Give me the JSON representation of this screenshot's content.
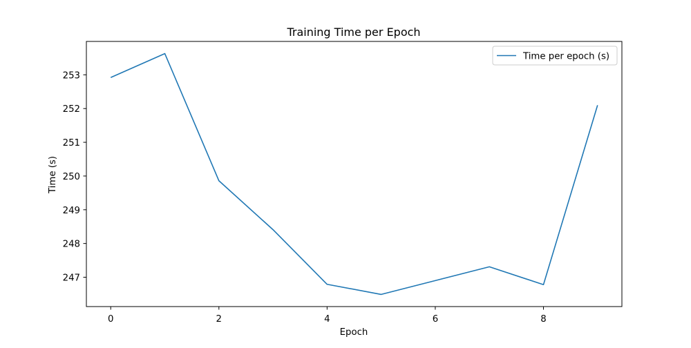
{
  "chart_data": {
    "type": "line",
    "title": "Training Time per Epoch",
    "xlabel": "Epoch",
    "ylabel": "Time (s)",
    "x": [
      0,
      1,
      2,
      3,
      4,
      5,
      6,
      7,
      8,
      9
    ],
    "series": [
      {
        "name": "Time per epoch (s)",
        "values": [
          252.92,
          253.63,
          249.86,
          248.41,
          246.79,
          246.49,
          246.9,
          247.31,
          246.78,
          252.1
        ],
        "color": "#1f77b4"
      }
    ],
    "xlim": [
      -0.45,
      9.45
    ],
    "ylim": [
      246.13,
      253.99
    ],
    "xticks": [
      0,
      2,
      4,
      6,
      8
    ],
    "yticks": [
      247,
      248,
      249,
      250,
      251,
      252,
      253
    ],
    "grid": false,
    "legend_position": "top-right"
  }
}
